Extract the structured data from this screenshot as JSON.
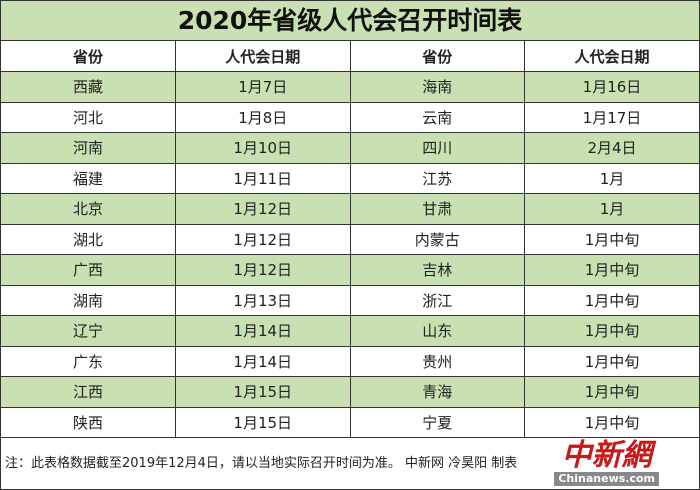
{
  "title": "2020年省级人代会召开时间表",
  "headers": [
    "省份",
    "人代会日期",
    "省份",
    "人代会日期"
  ],
  "rows": [
    [
      "西藏",
      "1月7日",
      "海南",
      "1月16日"
    ],
    [
      "河北",
      "1月8日",
      "云南",
      "1月17日"
    ],
    [
      "河南",
      "1月10日",
      "四川",
      "2月4日"
    ],
    [
      "福建",
      "1月11日",
      "江苏",
      "1月"
    ],
    [
      "北京",
      "1月12日",
      "甘肃",
      "1月"
    ],
    [
      "湖北",
      "1月12日",
      "内蒙古",
      "1月中旬"
    ],
    [
      "广西",
      "1月12日",
      "吉林",
      "1月中旬"
    ],
    [
      "湖南",
      "1月13日",
      "浙江",
      "1月中旬"
    ],
    [
      "辽宁",
      "1月14日",
      "山东",
      "1月中旬"
    ],
    [
      "广东",
      "1月14日",
      "贵州",
      "1月中旬"
    ],
    [
      "江西",
      "1月15日",
      "青海",
      "1月中旬"
    ],
    [
      "陕西",
      "1月15日",
      "宁夏",
      "1月中旬"
    ]
  ],
  "footnote": "注：此表格数据截至2019年12月4日，请以当地实际召开时间为准。 中新网 冷昊阳 制表",
  "watermark": {
    "cn": "中新網",
    "en": "Chinanews.com"
  },
  "colors": {
    "stripe": "#c8e0b2",
    "logo": "#c81818"
  }
}
